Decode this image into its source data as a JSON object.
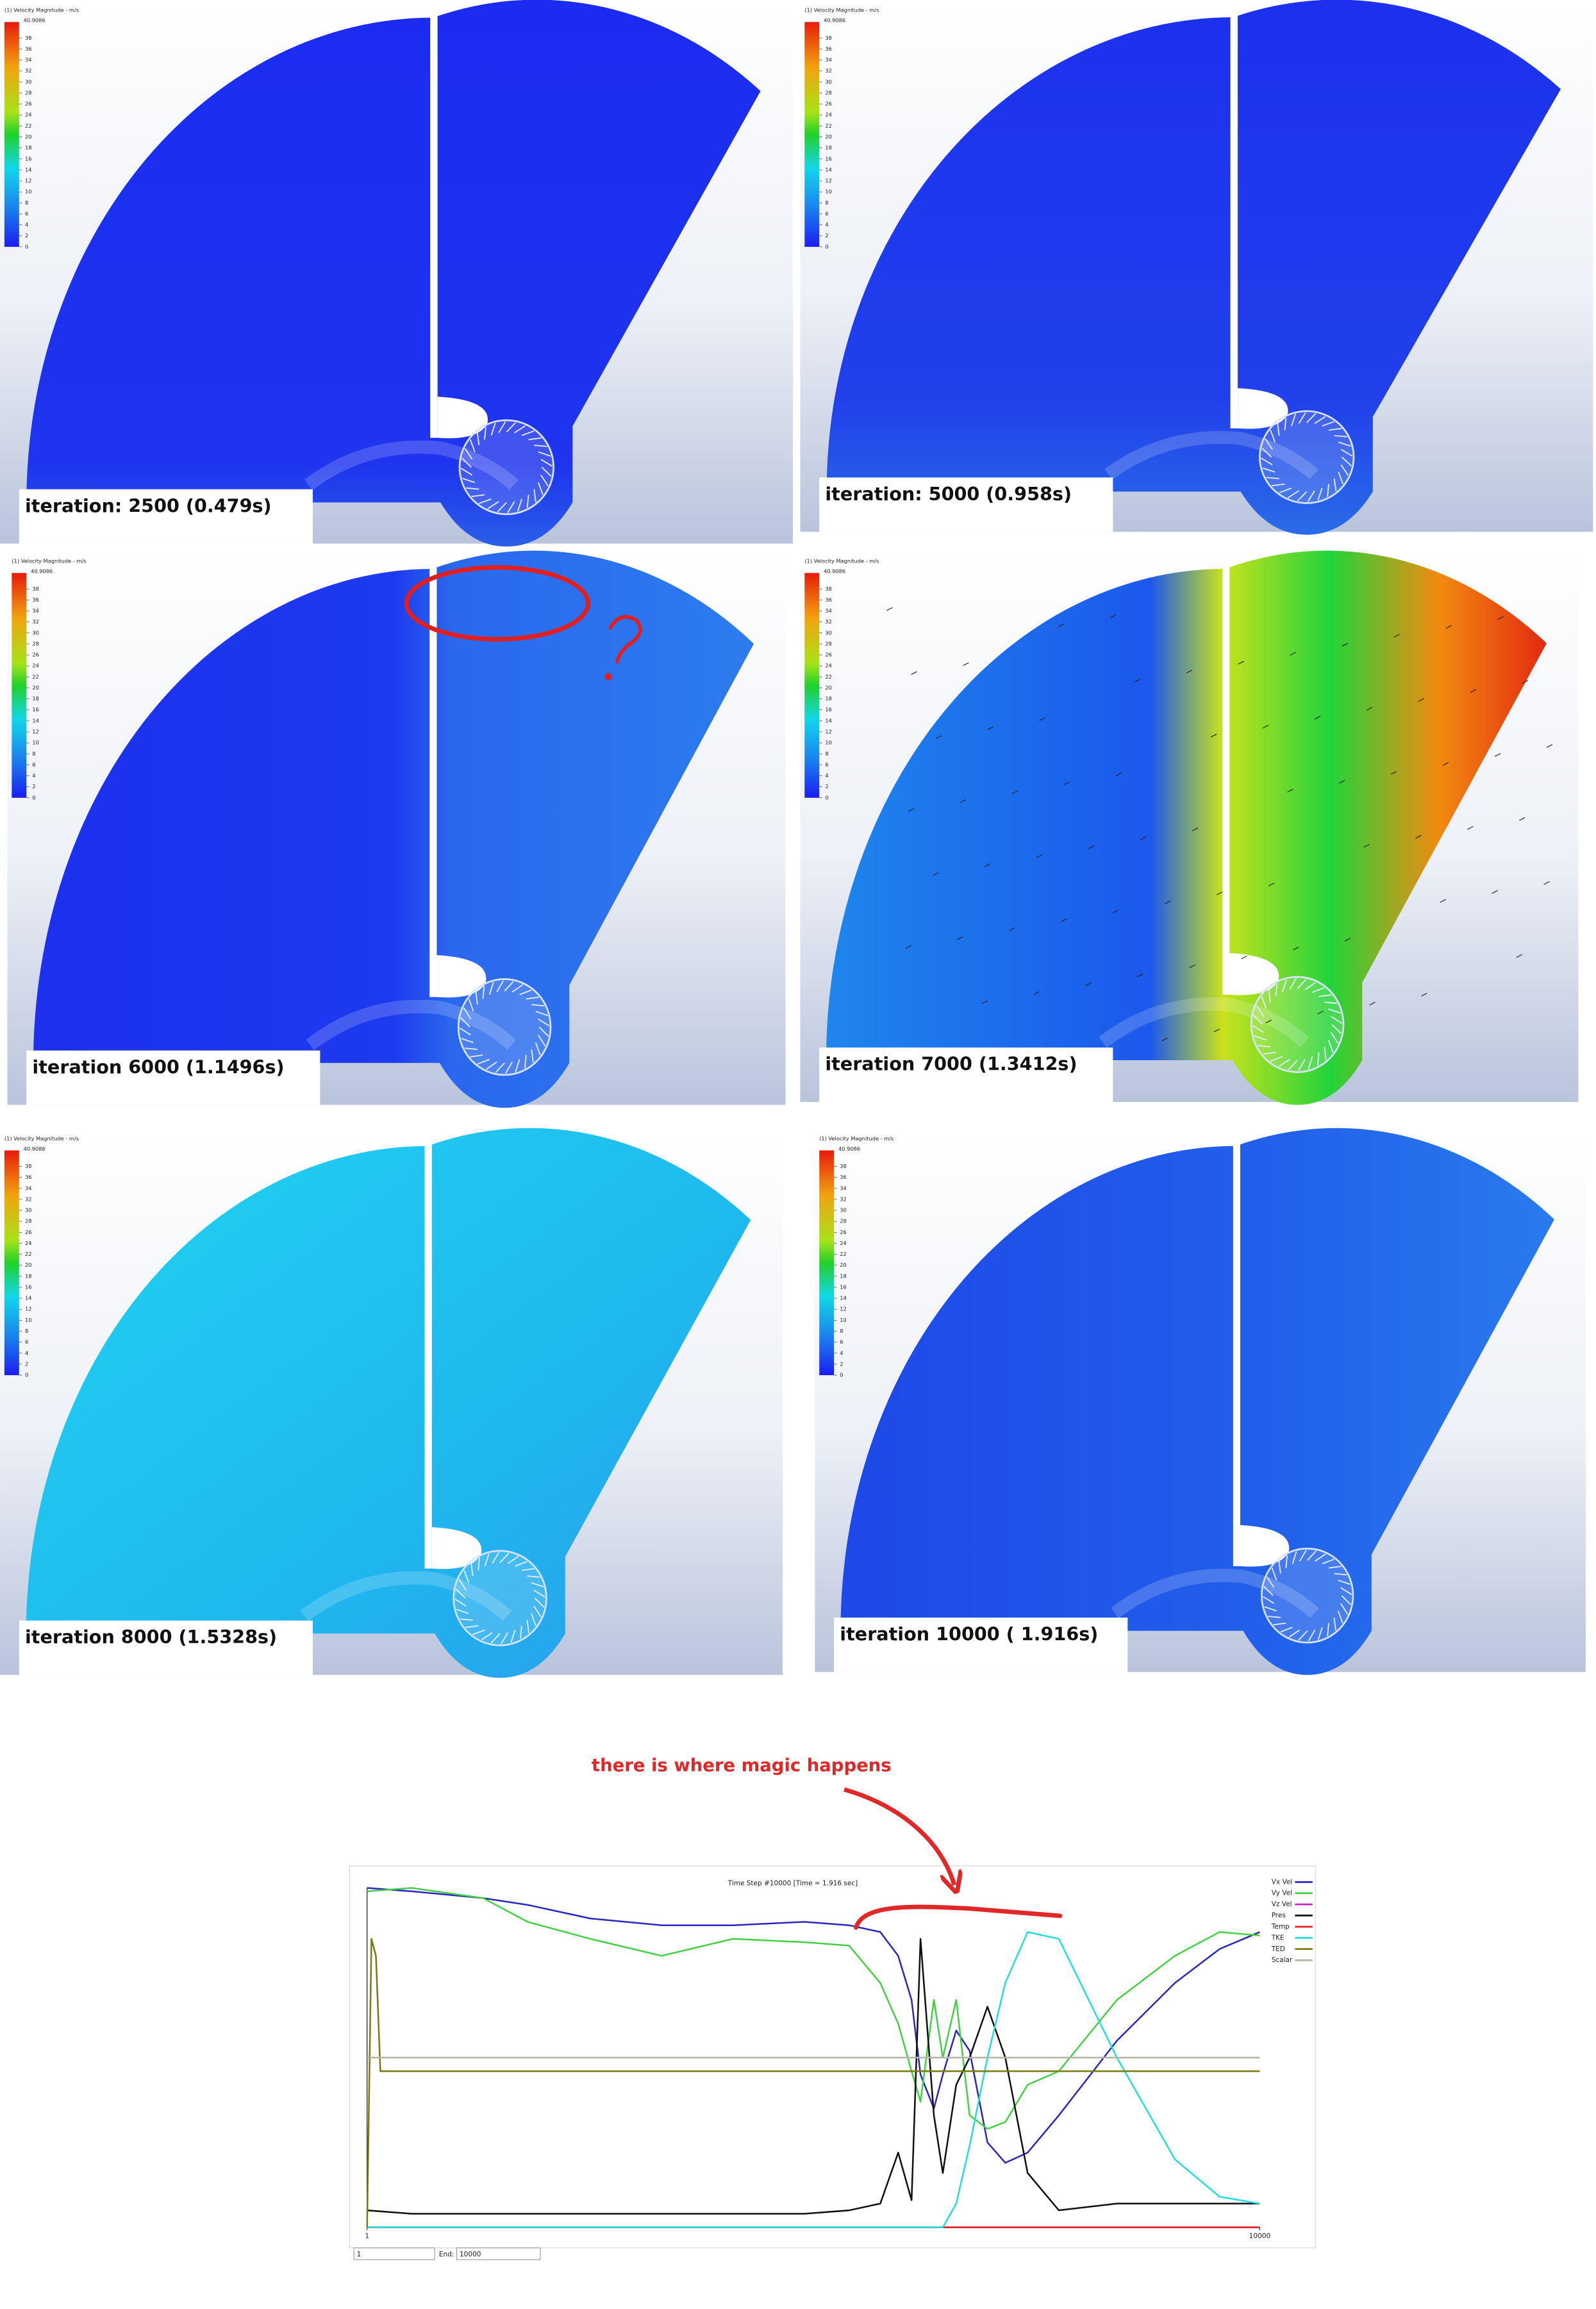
{
  "colorbar": {
    "title": "(1) Velocity Magnitude - m/s",
    "max": 40.9086,
    "ticks": [
      38,
      36,
      34,
      32,
      30,
      28,
      26,
      24,
      22,
      20,
      18,
      16,
      14,
      12,
      10,
      8,
      6,
      4,
      2,
      0
    ]
  },
  "panels": [
    {
      "caption": "iteration: 2500 (0.479s)"
    },
    {
      "caption": "iteration: 5000 (0.958s)"
    },
    {
      "caption": "iteration 6000 (1.1496s)"
    },
    {
      "caption": "iteration 7000 (1.3412s)"
    },
    {
      "caption": "iteration 8000 (1.5328s)"
    },
    {
      "caption": "iteration 10000 ( 1.916s)"
    }
  ],
  "annotation": "there is where magic happens",
  "chart_data": {
    "type": "line",
    "title": "Time Step #10000 [Time = 1.916 sec]",
    "xlim": [
      1,
      10000
    ],
    "xticks": [
      1,
      10000
    ],
    "ylim": [
      0,
      100
    ],
    "series": [
      {
        "name": "Vx Vel",
        "color": "#2828c0",
        "x": [
          1,
          500,
          1300,
          1800,
          2500,
          3300,
          4100,
          4900,
          5400,
          5750,
          5950,
          6100,
          6200,
          6350,
          6450,
          6600,
          6750,
          6950,
          7150,
          7400,
          7750,
          8400,
          9050,
          9550,
          10000
        ],
        "values": [
          100,
          99,
          97,
          95,
          91,
          89,
          89,
          90,
          89,
          87,
          80,
          67,
          45,
          35,
          45,
          58,
          52,
          25,
          19,
          22,
          33,
          55,
          72,
          82,
          87
        ]
      },
      {
        "name": "Vy Vel",
        "color": "#44d044",
        "x": [
          1,
          500,
          1300,
          1800,
          2500,
          3300,
          4100,
          4900,
          5400,
          5750,
          5950,
          6100,
          6200,
          6350,
          6450,
          6600,
          6750,
          6950,
          7150,
          7400,
          7750,
          8400,
          9050,
          9550,
          10000
        ],
        "values": [
          99,
          100,
          97,
          90,
          85,
          80,
          85,
          84,
          83,
          72,
          60,
          46,
          37,
          67,
          50,
          67,
          33,
          29,
          31,
          42,
          46,
          67,
          80,
          87,
          86
        ]
      },
      {
        "name": "Vz Vel",
        "color": "#c028c0",
        "x": [
          1,
          10000
        ],
        "values": [
          0,
          0
        ]
      },
      {
        "name": "Pres",
        "color": "#111111",
        "x": [
          1,
          500,
          1300,
          1800,
          2500,
          3300,
          4100,
          4900,
          5400,
          5750,
          5950,
          6100,
          6200,
          6350,
          6450,
          6600,
          6750,
          6950,
          7150,
          7400,
          7750,
          8400,
          9050,
          9550,
          10000
        ],
        "values": [
          5,
          4,
          4,
          4,
          4,
          4,
          4,
          4,
          5,
          7,
          22,
          8,
          85,
          33,
          16,
          42,
          50,
          65,
          50,
          16,
          5,
          7,
          7,
          7,
          7
        ]
      },
      {
        "name": "Temp",
        "color": "#e02020",
        "x": [
          1,
          10000
        ],
        "values": [
          0,
          0
        ]
      },
      {
        "name": "TKE",
        "color": "#22dede",
        "x": [
          1,
          500,
          1300,
          1800,
          2500,
          3300,
          4100,
          4900,
          5400,
          5750,
          5950,
          6100,
          6200,
          6350,
          6450,
          6600,
          6750,
          6950,
          7150,
          7400,
          7750,
          8400,
          9050,
          9550,
          10000
        ],
        "values": [
          0,
          0,
          0,
          0,
          0,
          0,
          0,
          0,
          0,
          0,
          0,
          0,
          0,
          0,
          0,
          7,
          24,
          50,
          72,
          87,
          85,
          50,
          20,
          9,
          7
        ]
      },
      {
        "name": "TED",
        "color": "#7a7a10",
        "x": [
          1,
          50,
          100,
          150,
          250,
          10000
        ],
        "values": [
          0,
          85,
          80,
          46,
          46,
          46
        ]
      },
      {
        "name": "Scalar",
        "color": "#b4b4a8",
        "x": [
          1,
          10000
        ],
        "values": [
          50,
          50
        ]
      }
    ]
  },
  "controls": {
    "start": "1",
    "end_label": "End:",
    "end": "10000"
  }
}
